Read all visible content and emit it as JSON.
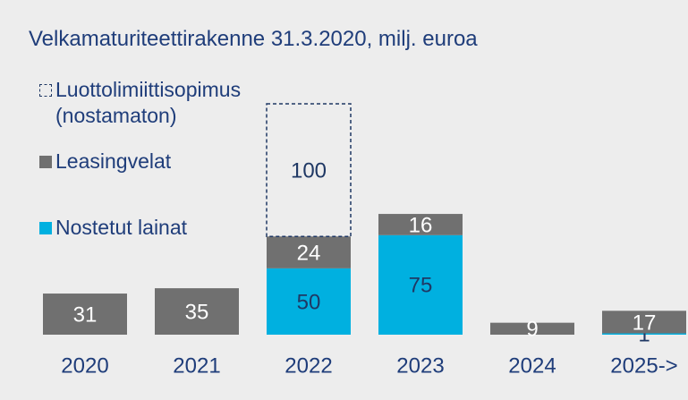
{
  "chart_data": {
    "type": "stacked_bar",
    "title": "Velkamaturiteettirakenne 31.3.2020, milj. euroa",
    "categories": [
      "2020",
      "2021",
      "2022",
      "2023",
      "2024",
      "2025->"
    ],
    "series": [
      {
        "name": "Nostetut lainat",
        "color": "#00b0e0",
        "values": [
          null,
          null,
          50,
          75,
          null,
          1
        ]
      },
      {
        "name": "Leasingvelat",
        "color": "#707070",
        "values": [
          31,
          35,
          24,
          16,
          9,
          17
        ]
      },
      {
        "name": "Luottolimiittisopimus (nostamaton)",
        "color": "#1f3864",
        "dashed": true,
        "values": [
          null,
          null,
          100,
          null,
          null,
          null
        ]
      }
    ]
  }
}
